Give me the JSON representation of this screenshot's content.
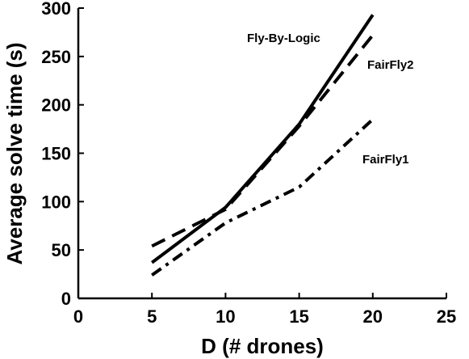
{
  "chart_data": {
    "type": "line",
    "xlabel": "D (# drones)",
    "ylabel": "Average solve time (s)",
    "xlim": [
      0,
      25
    ],
    "ylim": [
      0,
      300
    ],
    "xticks": [
      0,
      5,
      10,
      15,
      20,
      25
    ],
    "yticks": [
      0,
      50,
      100,
      150,
      200,
      250,
      300
    ],
    "grid": false,
    "legend": "inline labels",
    "series": [
      {
        "name": "Fly-By-Logic",
        "style": "solid",
        "color": "#000000",
        "x": [
          5,
          10,
          15,
          20
        ],
        "y": [
          37,
          94,
          180,
          293
        ]
      },
      {
        "name": "FairFly2",
        "style": "dashed",
        "color": "#000000",
        "x": [
          5,
          10,
          15,
          20
        ],
        "y": [
          54,
          92,
          178,
          272
        ]
      },
      {
        "name": "FairFly1",
        "style": "dashdot",
        "color": "#000000",
        "x": [
          5,
          10,
          15,
          20
        ],
        "y": [
          24,
          78,
          115,
          185
        ]
      }
    ]
  }
}
